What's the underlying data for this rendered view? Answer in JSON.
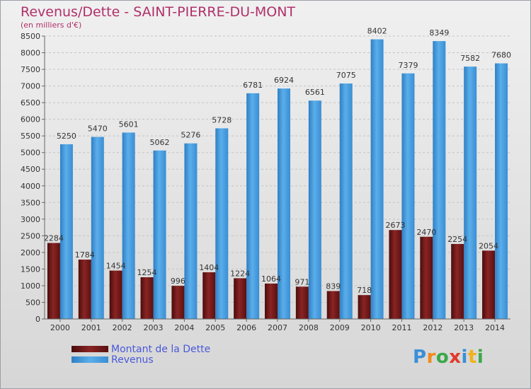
{
  "title": "Revenus/Dette - SAINT-PIERRE-DU-MONT",
  "subtitle": "(en milliers d'€)",
  "colors": {
    "title": "#b0306a",
    "debt": "#7a1a1a",
    "revenue": "#4b9fde",
    "legend_text": "#4a58d8"
  },
  "legend": {
    "debt_label": "Montant de la Dette",
    "revenue_label": "Revenus"
  },
  "logo": {
    "text": "Proxiti",
    "letters": [
      "P",
      "r",
      "o",
      "x",
      "i",
      "t",
      "i"
    ]
  },
  "chart_data": {
    "type": "bar",
    "title": "Revenus/Dette - SAINT-PIERRE-DU-MONT",
    "ylabel": "(en milliers d'€)",
    "xlabel": "",
    "ylim": [
      0,
      8500
    ],
    "ytick_step": 500,
    "grid": true,
    "categories": [
      "2000",
      "2001",
      "2002",
      "2003",
      "2004",
      "2005",
      "2006",
      "2007",
      "2008",
      "2009",
      "2010",
      "2011",
      "2012",
      "2013",
      "2014"
    ],
    "series": [
      {
        "name": "Montant de la Dette",
        "values": [
          2284,
          1784,
          1454,
          1254,
          996,
          1404,
          1224,
          1064,
          971,
          839,
          718,
          2673,
          2470,
          2254,
          2054
        ],
        "labels": [
          "2284",
          "1784",
          "1454",
          "1254",
          "996",
          "1404",
          "1224",
          "1064",
          "971",
          "839",
          "718",
          "2673",
          "2470",
          "2254",
          "2054"
        ]
      },
      {
        "name": "Revenus",
        "values": [
          5250,
          5470,
          5601,
          5062,
          5276,
          5728,
          6781,
          6924,
          6561,
          7075,
          8402,
          7379,
          8349,
          7582,
          7680
        ],
        "labels": [
          "5250",
          "5470",
          "5601",
          "5062",
          "5276",
          "5728",
          "6781",
          "6924",
          "6561",
          "7075",
          "8402",
          "7379",
          "8349",
          "7582",
          "7680"
        ]
      }
    ]
  }
}
